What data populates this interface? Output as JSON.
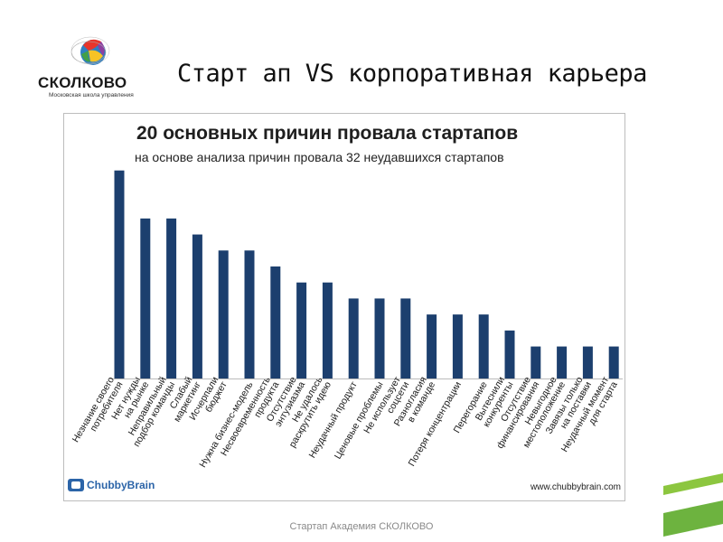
{
  "logo": {
    "name": "СКОЛКОВО",
    "subtitle": "Московская школа управления"
  },
  "slide_title": "Старт ап VS корпоративная карьера",
  "footer": "Стартап Академия СКОЛКОВО",
  "chart_brand": "ChubbyBrain",
  "chart_website": "www.chubbybrain.com",
  "colors": {
    "bar": "#1c3f6e",
    "accent_green": "#8cc63f"
  },
  "chart_data": {
    "type": "bar",
    "title": "20 основных причин провала стартапов",
    "subtitle": "на основе анализа причин провала 32 неудавшихся стартапов",
    "xlabel": "",
    "ylabel": "",
    "ylim": [
      0,
      14
    ],
    "grid": false,
    "categories": [
      [
        "Незнание своего",
        "потребителя"
      ],
      [
        "Нет нужды",
        "на рынке"
      ],
      [
        "Неправильный",
        "подбор команды"
      ],
      [
        "Слабый",
        "маркетинг"
      ],
      [
        "Исчерпали",
        "бюджет"
      ],
      [
        "Нужна бизнес-модель"
      ],
      [
        "Несвоевременность",
        "продукта"
      ],
      [
        "Отсутствие",
        "энтузиазма"
      ],
      [
        "Не удалось",
        "раскрутить идею"
      ],
      [
        "Неудачный продукт"
      ],
      [
        "Ценовые проблемы"
      ],
      [
        "Не использует",
        "соцсети"
      ],
      [
        "Разногласия",
        "в команде"
      ],
      [
        "Потеря концентрации"
      ],
      [
        "Перегорание"
      ],
      [
        "Вытеснили",
        "конкуренты"
      ],
      [
        "Отсутствие",
        "финансирования"
      ],
      [
        "Невыгодное",
        "местоположение"
      ],
      [
        "Завязы только",
        "на поставки"
      ],
      [
        "Неудачный момент",
        "для старта"
      ]
    ],
    "values": [
      13,
      10,
      10,
      9,
      8,
      8,
      7,
      6,
      6,
      5,
      5,
      5,
      4,
      4,
      4,
      3,
      2,
      2,
      2,
      2
    ]
  }
}
